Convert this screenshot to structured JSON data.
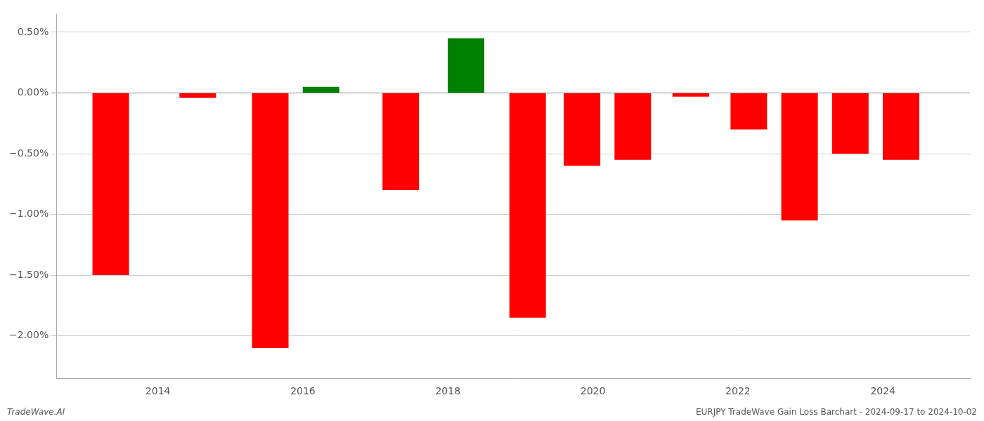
{
  "chart_data": {
    "type": "bar",
    "x": [
      2013.35,
      2014.55,
      2015.55,
      2016.25,
      2017.35,
      2018.25,
      2019.1,
      2019.85,
      2020.55,
      2021.35,
      2022.15,
      2022.85,
      2023.55,
      2024.25
    ],
    "values": [
      -1.5,
      -0.04,
      -2.1,
      0.05,
      -0.8,
      0.45,
      -1.85,
      -0.6,
      -0.55,
      -0.03,
      -0.3,
      -1.05,
      -0.5,
      -0.55
    ],
    "colors": [
      "#ff0000",
      "#ff0000",
      "#ff0000",
      "#008000",
      "#ff0000",
      "#008000",
      "#ff0000",
      "#ff0000",
      "#ff0000",
      "#ff0000",
      "#ff0000",
      "#ff0000",
      "#ff0000",
      "#ff0000"
    ],
    "xlim": [
      2012.6,
      2025.2
    ],
    "xticks": [
      2014,
      2016,
      2018,
      2020,
      2022,
      2024
    ],
    "ylim": [
      -2.35,
      0.65
    ],
    "yticks": [
      {
        "value": -2.0,
        "label": "−2.00%"
      },
      {
        "value": -1.5,
        "label": "−1.50%"
      },
      {
        "value": -1.0,
        "label": "−1.00%"
      },
      {
        "value": -0.5,
        "label": "−0.50%"
      },
      {
        "value": 0.0,
        "label": "0.00%"
      },
      {
        "value": 0.5,
        "label": "0.50%"
      }
    ],
    "grid": "y",
    "annotations": [
      "TradeWave.AI",
      "EURJPY TradeWave Gain Loss Barchart - 2024-09-17 to 2024-10-02"
    ]
  }
}
